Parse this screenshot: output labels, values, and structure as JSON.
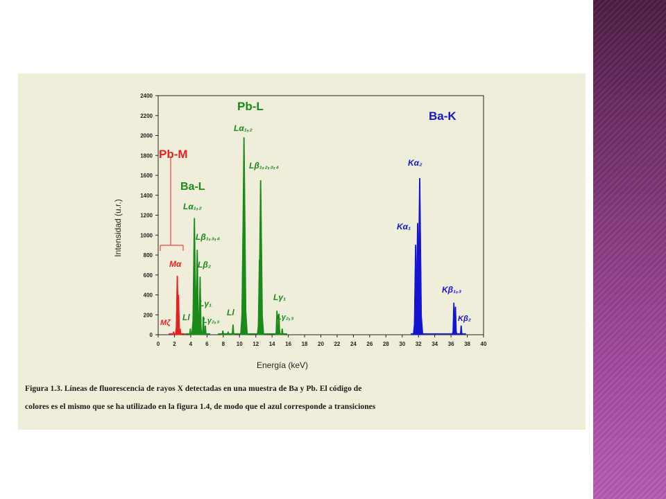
{
  "slide": {
    "side_band_colors": [
      "#4a1b42",
      "#b75bb3"
    ],
    "panel_color": "#efeedb"
  },
  "caption": {
    "line1": "Figura 1.3. Líneas de fluorescencia de rayos X detectadas en una muestra de Ba y Pb. El código de",
    "line2": "colores es el mismo que se ha utilizado en la figura 1.4, de modo que el azul corresponde a transiciones"
  },
  "chart_data": {
    "type": "spectrum",
    "xlabel": "Energía (keV)",
    "ylabel": "Intensidad (u.r.)",
    "xlim": [
      0,
      40
    ],
    "ylim": [
      0,
      2400
    ],
    "xticks": [
      0,
      2,
      4,
      6,
      8,
      10,
      12,
      14,
      16,
      18,
      20,
      22,
      24,
      26,
      28,
      30,
      32,
      34,
      36,
      38,
      40
    ],
    "yticks": [
      0,
      200,
      400,
      600,
      800,
      1000,
      1200,
      1400,
      1600,
      1800,
      2000,
      2200,
      2400
    ],
    "series": [
      {
        "name": "Pb-M",
        "color": "#e52222",
        "peaks": [
          [
            1.9,
            30
          ],
          [
            2.35,
            590
          ],
          [
            2.5,
            400
          ],
          [
            2.7,
            60
          ]
        ]
      },
      {
        "name": "Ba-L",
        "color": "#1a8a1a",
        "peaks": [
          [
            3.95,
            60
          ],
          [
            4.45,
            1170
          ],
          [
            4.8,
            850
          ],
          [
            5.15,
            580
          ],
          [
            5.55,
            180
          ],
          [
            5.8,
            90
          ]
        ]
      },
      {
        "name": "Pb-L",
        "color": "#1a8a1a",
        "peaks": [
          [
            7.95,
            40
          ],
          [
            8.6,
            30
          ],
          [
            9.2,
            100
          ],
          [
            10.45,
            1100
          ],
          [
            10.55,
            1980
          ],
          [
            12.45,
            750
          ],
          [
            12.6,
            1550
          ],
          [
            14.6,
            240
          ],
          [
            14.85,
            210
          ],
          [
            15.25,
            60
          ]
        ]
      },
      {
        "name": "Ba-K",
        "color": "#1515d0",
        "peaks": [
          [
            31.65,
            900
          ],
          [
            31.9,
            1120
          ],
          [
            32.15,
            1570
          ],
          [
            36.35,
            320
          ],
          [
            36.55,
            280
          ],
          [
            37.25,
            90
          ]
        ]
      }
    ],
    "annotations": [
      {
        "text": "Pb-M",
        "color": "#e52222"
      },
      {
        "text": "Mα",
        "color": "#e52222"
      },
      {
        "text": "Mζ",
        "color": "#e52222"
      },
      {
        "text": "Ba-L",
        "color": "#1a8a1a"
      },
      {
        "text": "Lα₁,₂",
        "color": "#1a8a1a"
      },
      {
        "text": "Lβ₁,₃,₄",
        "color": "#1a8a1a"
      },
      {
        "text": "Lβ₂",
        "color": "#1a8a1a"
      },
      {
        "text": "Lγ₁",
        "color": "#1a8a1a"
      },
      {
        "text": "Lγ₂,₃",
        "color": "#1a8a1a"
      },
      {
        "text": "Ll",
        "color": "#1a8a1a"
      },
      {
        "text": "Pb-L",
        "color": "#1a8a1a"
      },
      {
        "text": "Lα₁,₂",
        "color": "#1a8a1a"
      },
      {
        "text": "Lβ₁,₂,₃,₄",
        "color": "#1a8a1a"
      },
      {
        "text": "Ll",
        "color": "#1a8a1a"
      },
      {
        "text": "Lγ₁",
        "color": "#1a8a1a"
      },
      {
        "text": "Lγ₂,₃",
        "color": "#1a8a1a"
      },
      {
        "text": "Ba-K",
        "color": "#1515d0"
      },
      {
        "text": "Kα₂",
        "color": "#1515d0"
      },
      {
        "text": "Kα₁",
        "color": "#1515d0"
      },
      {
        "text": "Kβ₁,₃",
        "color": "#1515d0"
      },
      {
        "text": "Kβ₂",
        "color": "#1515d0"
      }
    ]
  }
}
